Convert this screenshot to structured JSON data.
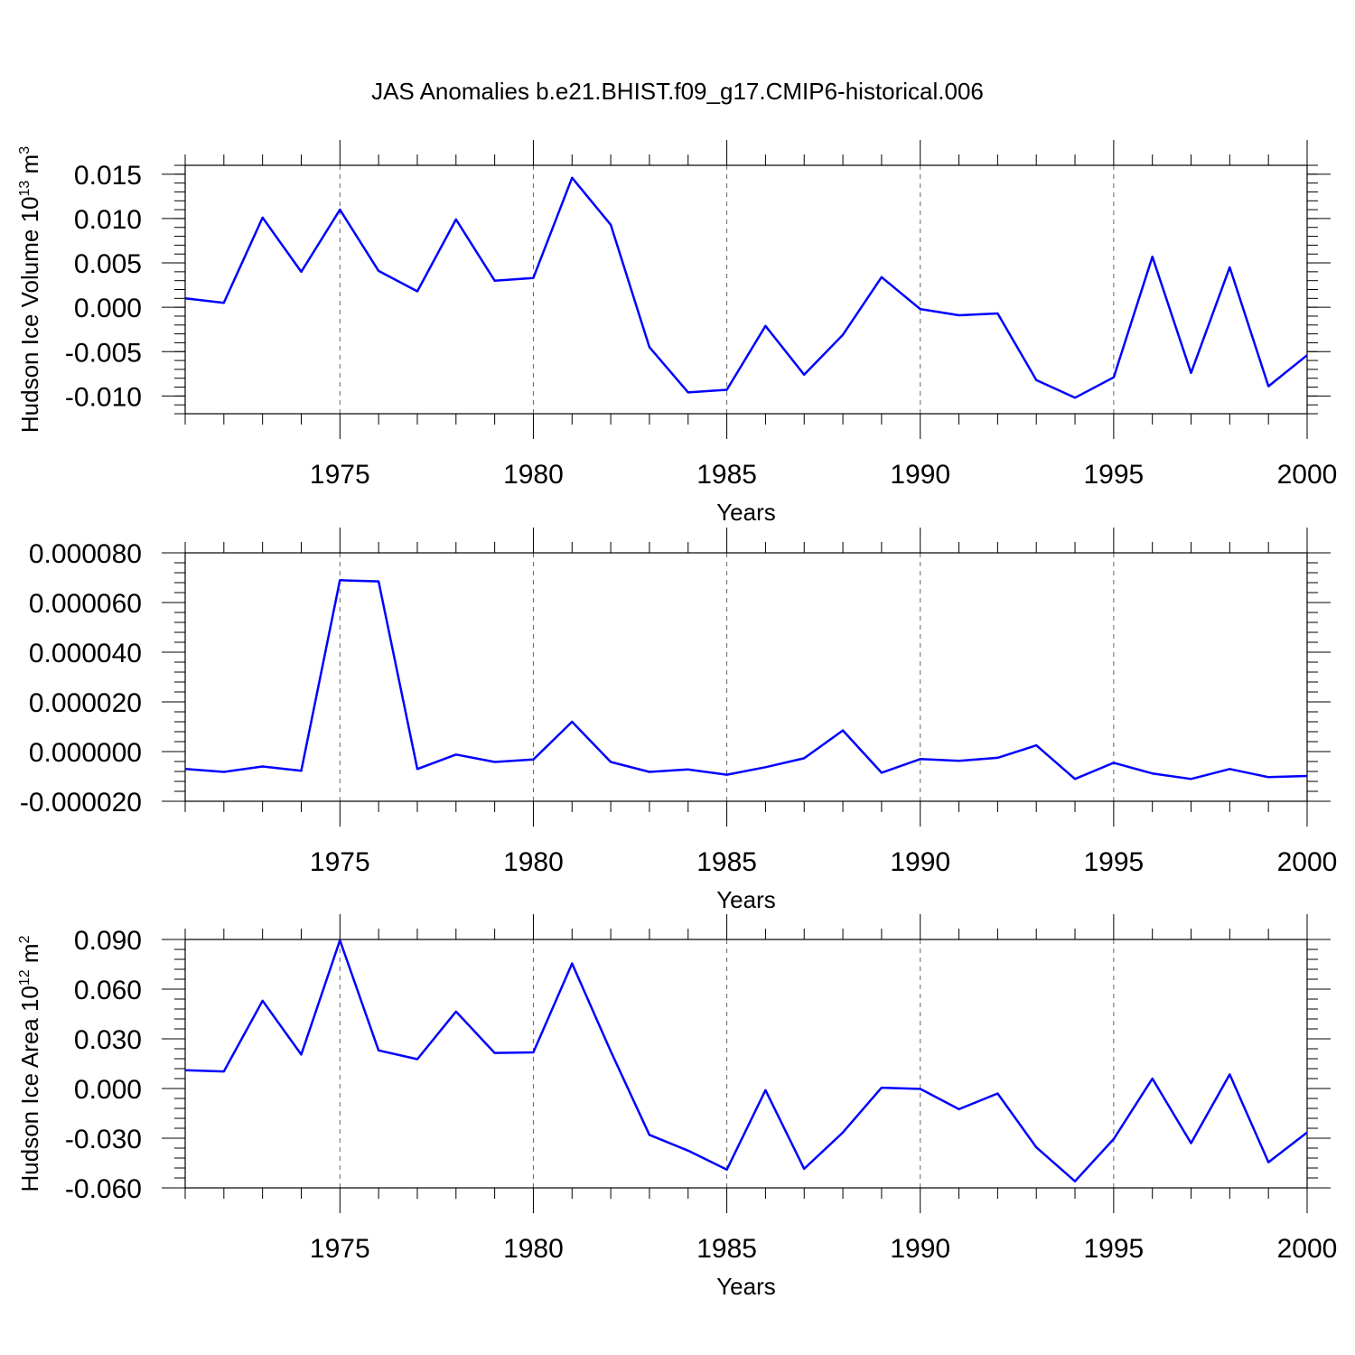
{
  "title": "JAS Anomalies b.e21.BHIST.f09_g17.CMIP6-historical.006",
  "colors": {
    "line": "#0000ff",
    "axis": "#000000",
    "grid": "#666666"
  },
  "chart_data": [
    {
      "type": "line",
      "title": "JAS Anomalies b.e21.BHIST.f09_g17.CMIP6-historical.006",
      "xlabel": "Years",
      "ylabel_main": "Hudson Ice Volume 10",
      "ylabel_sup": "13",
      "ylabel_unit": " m",
      "ylabel_unit_sup": "3",
      "xlim": [
        1971,
        2000
      ],
      "ylim": [
        -0.012,
        0.016
      ],
      "yticks": [
        0.015,
        0.01,
        0.005,
        0.0,
        -0.005,
        -0.01
      ],
      "ytick_labels": [
        "0.015",
        "0.010",
        "0.005",
        "0.000",
        "-0.005",
        "-0.010"
      ],
      "yminor_step": 0.001,
      "xticks": [
        1975,
        1980,
        1985,
        1990,
        1995,
        2000
      ],
      "xtick_labels": [
        "1975",
        "1980",
        "1985",
        "1990",
        "1995",
        "2000"
      ],
      "grid": "dashed vertical at major x ticks",
      "x": [
        1971,
        1972,
        1973,
        1974,
        1975,
        1976,
        1977,
        1978,
        1979,
        1980,
        1981,
        1982,
        1983,
        1984,
        1985,
        1986,
        1987,
        1988,
        1989,
        1990,
        1991,
        1992,
        1993,
        1994,
        1995,
        1996,
        1997,
        1998,
        1999,
        2000
      ],
      "series": [
        {
          "values": [
            0.001,
            0.0005,
            0.0101,
            0.004,
            0.011,
            0.0041,
            0.0018,
            0.0099,
            0.003,
            0.0033,
            0.0146,
            0.0093,
            -0.0045,
            -0.0096,
            -0.0093,
            -0.0021,
            -0.0076,
            -0.0031,
            0.0034,
            -0.0002,
            -0.0009,
            -0.0007,
            -0.0082,
            -0.0102,
            -0.0079,
            0.0057,
            -0.0074,
            0.0045,
            -0.0089,
            -0.0054
          ]
        }
      ]
    },
    {
      "type": "line",
      "xlabel": "Years",
      "xlim": [
        1971,
        2000
      ],
      "ylim": [
        -2e-05,
        8e-05
      ],
      "yticks": [
        8e-05,
        6e-05,
        4e-05,
        2e-05,
        0.0,
        -2e-05
      ],
      "ytick_labels": [
        "0.000080",
        "0.000060",
        "0.000040",
        "0.000020",
        "0.000000",
        "-0.000020"
      ],
      "yminor_step": 4e-06,
      "xticks": [
        1975,
        1980,
        1985,
        1990,
        1995,
        2000
      ],
      "xtick_labels": [
        "1975",
        "1980",
        "1985",
        "1990",
        "1995",
        "2000"
      ],
      "grid": "dashed vertical at major x ticks",
      "x": [
        1971,
        1972,
        1973,
        1974,
        1975,
        1976,
        1977,
        1978,
        1979,
        1980,
        1981,
        1982,
        1983,
        1984,
        1985,
        1986,
        1987,
        1988,
        1989,
        1990,
        1991,
        1992,
        1993,
        1994,
        1995,
        1996,
        1997,
        1998,
        1999,
        2000
      ],
      "series": [
        {
          "values": [
            -7e-06,
            -8.2e-06,
            -6e-06,
            -7.7e-06,
            6.9e-05,
            6.85e-05,
            -7e-06,
            -1.2e-06,
            -4.2e-06,
            -3.2e-06,
            1.2e-05,
            -4.2e-06,
            -8.2e-06,
            -7.2e-06,
            -9.3e-06,
            -6.3e-06,
            -2.7e-06,
            8.5e-06,
            -8.5e-06,
            -3e-06,
            -3.7e-06,
            -2.5e-06,
            2.5e-06,
            -1.1e-05,
            -4.5e-06,
            -8.8e-06,
            -1.1e-05,
            -7e-06,
            -1.03e-05,
            -9.8e-06
          ]
        }
      ]
    },
    {
      "type": "line",
      "xlabel": "Years",
      "ylabel_main": "Hudson Ice Area 10",
      "ylabel_sup": "12",
      "ylabel_unit": " m",
      "ylabel_unit_sup": "2",
      "xlim": [
        1971,
        2000
      ],
      "ylim": [
        -0.06,
        0.09
      ],
      "yticks": [
        0.09,
        0.06,
        0.03,
        0.0,
        -0.03,
        -0.06
      ],
      "ytick_labels": [
        "0.090",
        "0.060",
        "0.030",
        "0.000",
        "-0.030",
        "-0.060"
      ],
      "yminor_step": 0.006,
      "xticks": [
        1975,
        1980,
        1985,
        1990,
        1995,
        2000
      ],
      "xtick_labels": [
        "1975",
        "1980",
        "1985",
        "1990",
        "1995",
        "2000"
      ],
      "grid": "dashed vertical at major x ticks",
      "x": [
        1971,
        1972,
        1973,
        1974,
        1975,
        1976,
        1977,
        1978,
        1979,
        1980,
        1981,
        1982,
        1983,
        1984,
        1985,
        1986,
        1987,
        1988,
        1989,
        1990,
        1991,
        1992,
        1993,
        1994,
        1995,
        1996,
        1997,
        1998,
        1999,
        2000
      ],
      "series": [
        {
          "values": [
            0.011,
            0.0103,
            0.053,
            0.0205,
            0.0895,
            0.023,
            0.0177,
            0.0465,
            0.0215,
            0.0218,
            0.0755,
            0.0225,
            -0.028,
            -0.0375,
            -0.049,
            -0.001,
            -0.0485,
            -0.0265,
            0.0005,
            -0.0002,
            -0.0125,
            -0.003,
            -0.0355,
            -0.056,
            -0.0305,
            0.006,
            -0.033,
            0.0085,
            -0.0445,
            -0.0265
          ]
        }
      ]
    }
  ]
}
